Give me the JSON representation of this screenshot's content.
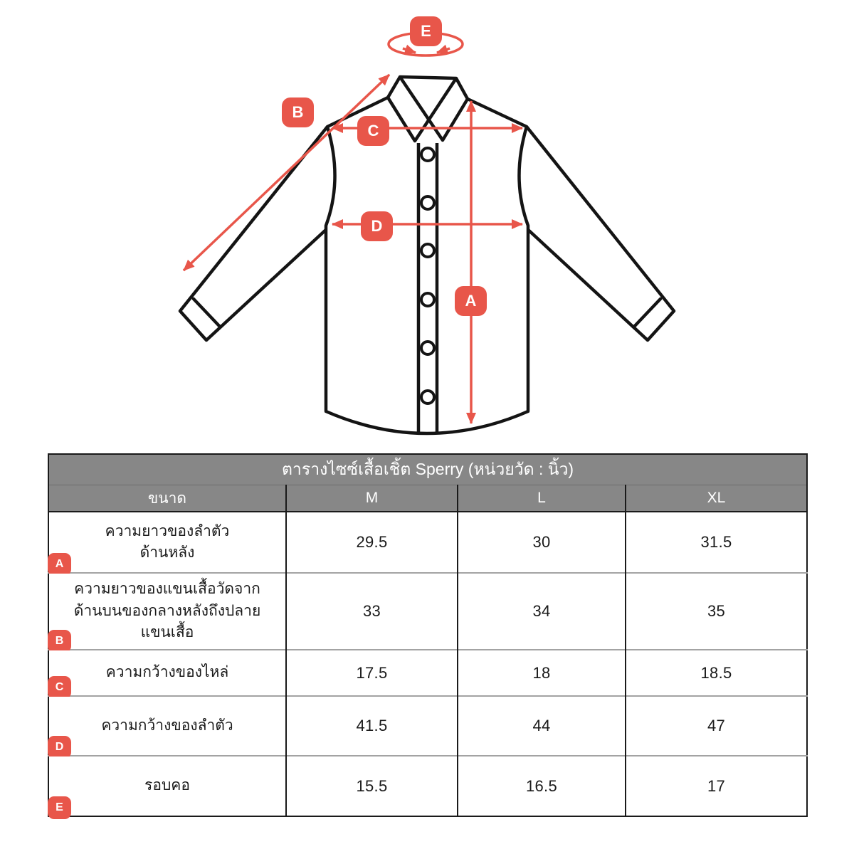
{
  "colors": {
    "accent": "#E8564A",
    "table_header_bg": "#878787",
    "line_art": "#141414"
  },
  "diagram": {
    "description_icons": {
      "rotation_icon": "elliptical rotation arrows around collar",
      "double_arrow_icon": "double-headed measurement arrows"
    },
    "badge_a": "A",
    "badge_b": "B",
    "badge_c": "C",
    "badge_d": "D",
    "badge_e": "E"
  },
  "table": {
    "title": "ตารางไซซ์เสื้อเชิ้ต Sperry (หน่วยวัด : นิ้ว)",
    "columns": [
      "ขนาด",
      "M",
      "L",
      "XL"
    ],
    "rows": [
      {
        "badge": "A",
        "label_lines": [
          "ความยาวของลำตัว",
          "ด้านหลัง"
        ],
        "values": [
          "29.5",
          "30",
          "31.5"
        ]
      },
      {
        "badge": "B",
        "label_lines": [
          "ความยาวของแขนเสื้อวัดจาก",
          "ด้านบนของกลางหลังถึงปลาย",
          "แขนเสื้อ"
        ],
        "values": [
          "33",
          "34",
          "35"
        ]
      },
      {
        "badge": "C",
        "label_lines": [
          "ความกว้างของไหล่"
        ],
        "values": [
          "17.5",
          "18",
          "18.5"
        ]
      },
      {
        "badge": "D",
        "label_lines": [
          "ความกว้างของลำตัว"
        ],
        "values": [
          "41.5",
          "44",
          "47"
        ]
      },
      {
        "badge": "E",
        "label_lines": [
          "รอบคอ"
        ],
        "values": [
          "15.5",
          "16.5",
          "17"
        ]
      }
    ]
  }
}
